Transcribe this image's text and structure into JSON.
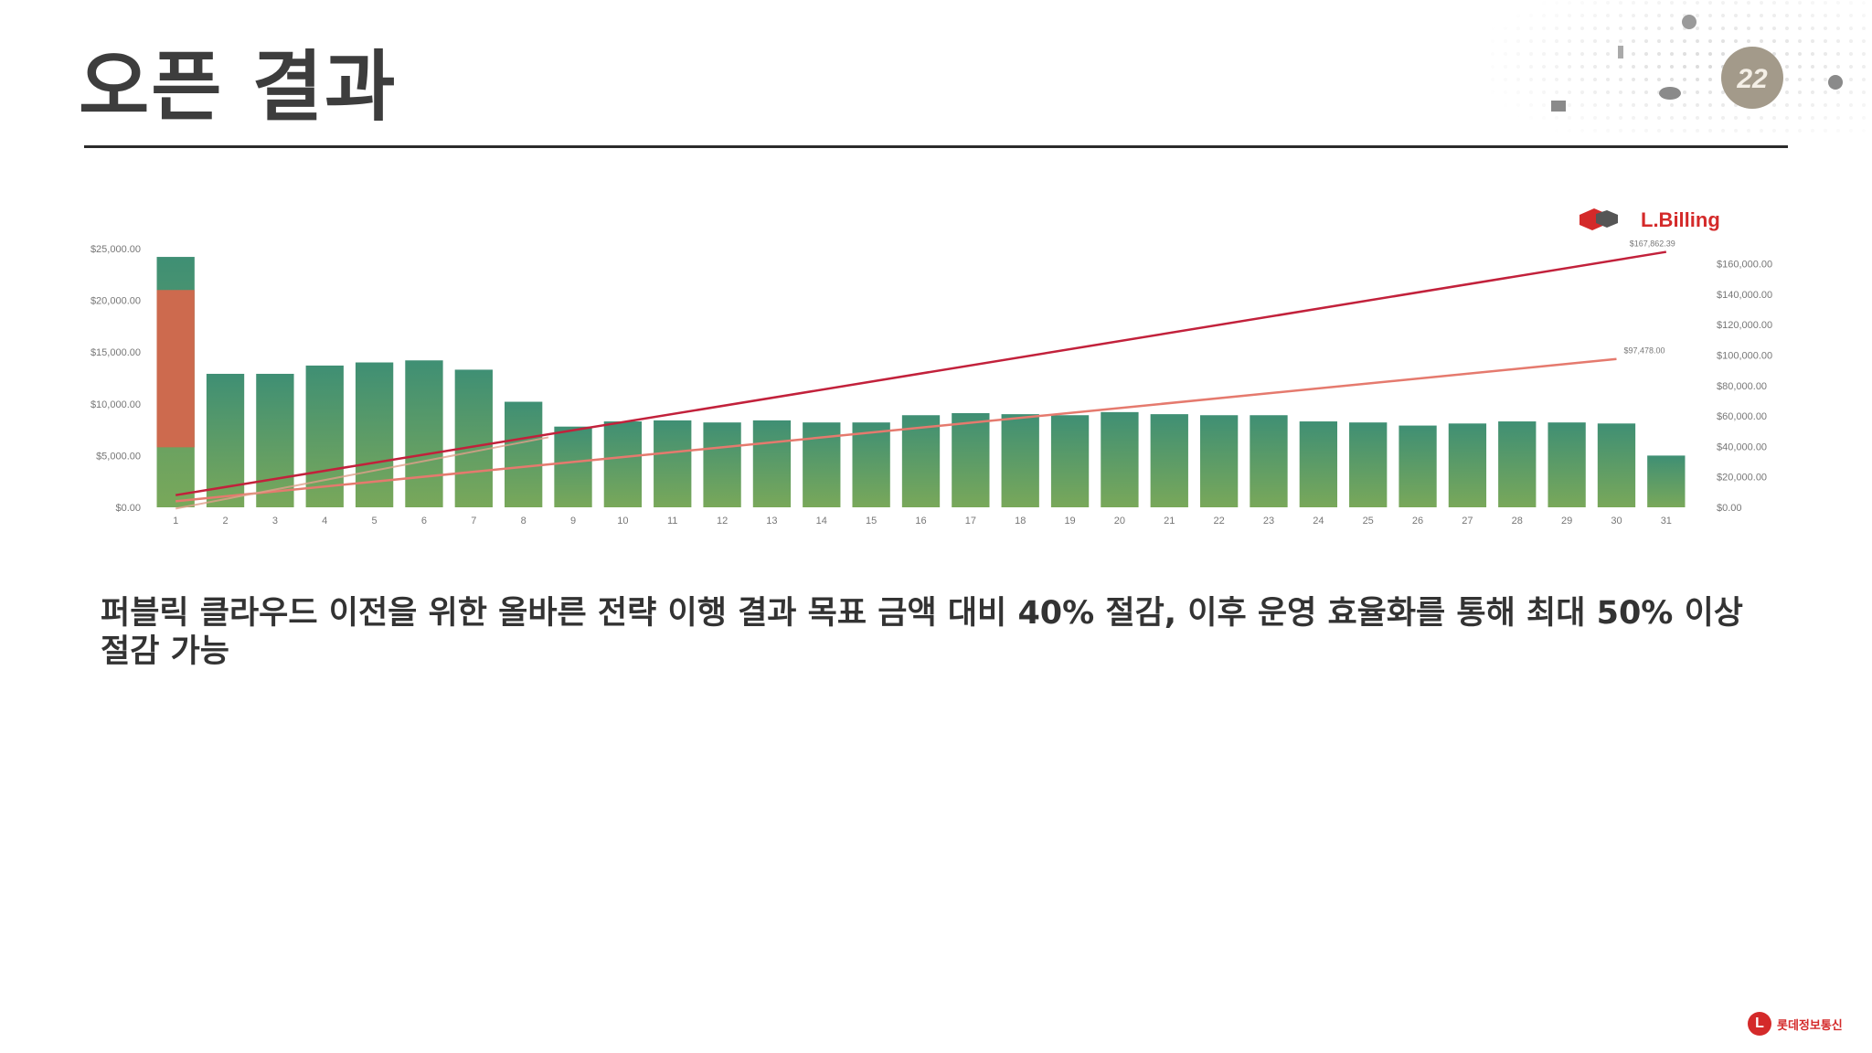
{
  "slide": {
    "title": "오픈 결과",
    "caption": "퍼블릭 클라우드 이전을 위한 올바른 전략 이행 결과 목표 금액 대비 40% 절감, 이후 운영 효율화를 통해 최대 50% 이상 절감 가능"
  },
  "brand": {
    "chart_logo_text": "L.Billing",
    "badge_text": "22",
    "footer_logo_text": "롯데정보통신",
    "colors": {
      "accent": "#d42a2a",
      "bar_top": "#3f8f74",
      "bar_bottom": "#79a85a",
      "line_primary": "#c2213b",
      "line_secondary": "#e57a6e"
    }
  },
  "chart_data": {
    "type": "bar",
    "categories": [
      "1",
      "2",
      "3",
      "4",
      "5",
      "6",
      "7",
      "8",
      "9",
      "10",
      "11",
      "12",
      "13",
      "14",
      "15",
      "16",
      "17",
      "18",
      "19",
      "20",
      "21",
      "22",
      "23",
      "24",
      "25",
      "26",
      "27",
      "28",
      "29",
      "30",
      "31"
    ],
    "series": [
      {
        "values": [
          24200,
          12900,
          12900,
          13700,
          14000,
          14200,
          13300,
          10200,
          7800,
          8300,
          8400,
          8200,
          8400,
          8200,
          8200,
          8900,
          9100,
          9000,
          8900,
          9200,
          9000,
          8900,
          8900,
          8300,
          8200,
          7900,
          8100,
          8300,
          8200,
          8100,
          5000
        ]
      }
    ],
    "highlight": {
      "category": "1",
      "value": 21000
    },
    "y_left": {
      "ticks": [
        "$0.00",
        "$5,000.00",
        "$10,000.00",
        "$15,000.00",
        "$20,000.00",
        "$25,000.00"
      ],
      "ylim": [
        0,
        25000
      ]
    },
    "y_right": {
      "ticks": [
        "$0.00",
        "$20,000.00",
        "$40,000.00",
        "$60,000.00",
        "$80,000.00",
        "$100,000.00",
        "$120,000.00",
        "$140,000.00",
        "$160,000.00"
      ],
      "ylim": [
        0,
        170000
      ]
    },
    "lines": [
      {
        "start": 8000,
        "end": 167862.39,
        "end_label": "$167,862.39"
      },
      {
        "start": 4000,
        "end": 97478,
        "end_label": "$97,478.00"
      }
    ],
    "legend": "none",
    "grid": false
  }
}
